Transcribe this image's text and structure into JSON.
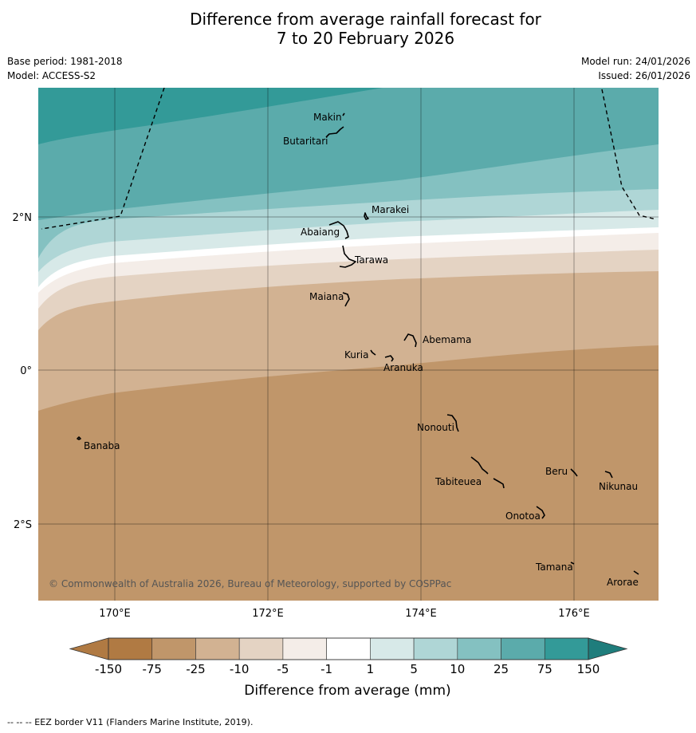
{
  "title_line1": "Difference from average rainfall forecast for",
  "title_line2": "7 to 20 February 2026",
  "base_period": "Base period: 1981-2018",
  "model": "Model: ACCESS-S2",
  "model_run": "Model run: 24/01/2026",
  "issued": "Issued: 26/01/2026",
  "copyright": "© Commonwealth of Australia 2026, Bureau of Meteorology, supported by COSPPac",
  "colorbar_label": "Difference from average (mm)",
  "footer": "--  --  -- EEZ border V11 (Flanders Marine Institute, 2019).",
  "lon_labels": [
    "170°E",
    "172°E",
    "174°E",
    "176°E"
  ],
  "lat_labels": [
    "2°N",
    "0°",
    "2°S"
  ],
  "colorbar": {
    "ticks": [
      "-150",
      "-75",
      "-25",
      "-10",
      "-5",
      "-1",
      "1",
      "5",
      "10",
      "25",
      "75",
      "150"
    ],
    "colors": [
      "#b07a43",
      "#c0966a",
      "#d2b292",
      "#e4d3c3",
      "#f4ede8",
      "#ffffff",
      "#d7e9e8",
      "#afd6d6",
      "#84c1c1",
      "#5babab",
      "#339a98",
      "#1f7d7c"
    ]
  },
  "places": [
    {
      "name": "Makin"
    },
    {
      "name": "Butaritari"
    },
    {
      "name": "Marakei"
    },
    {
      "name": "Abaiang"
    },
    {
      "name": "Tarawa"
    },
    {
      "name": "Maiana"
    },
    {
      "name": "Abemama"
    },
    {
      "name": "Kuria"
    },
    {
      "name": "Aranuka"
    },
    {
      "name": "Nonouti"
    },
    {
      "name": "Banaba"
    },
    {
      "name": "Beru"
    },
    {
      "name": "Tabiteuea"
    },
    {
      "name": "Nikunau"
    },
    {
      "name": "Onotoa"
    },
    {
      "name": "Tamana"
    },
    {
      "name": "Arorae"
    }
  ]
}
